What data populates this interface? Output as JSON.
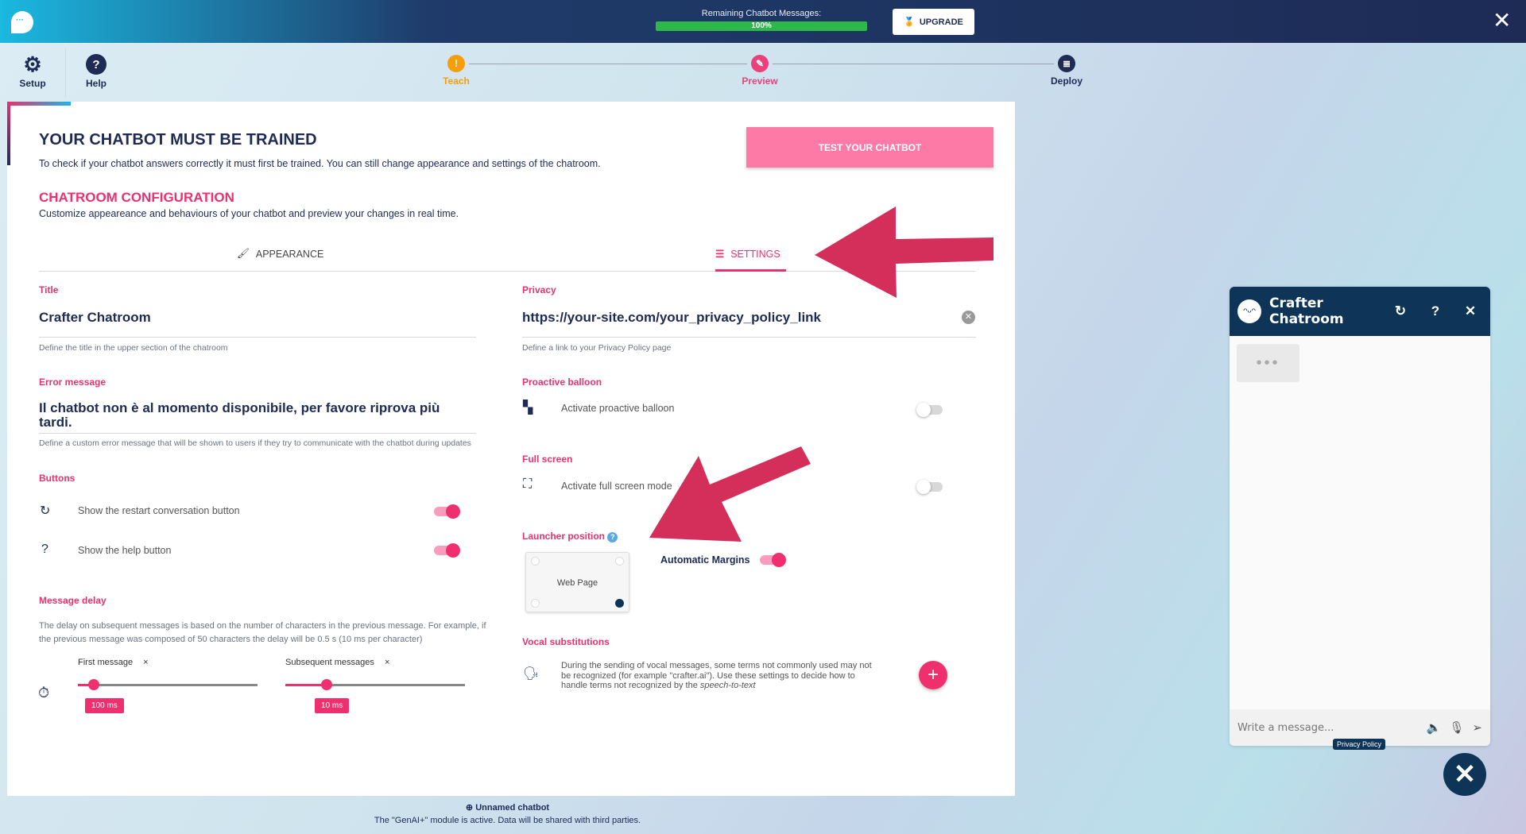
{
  "topbar": {
    "remaining_label": "Remaining Chatbot Messages:",
    "remaining_progress": "100%",
    "upgrade_label": "UPGRADE",
    "close_icon": "close-icon"
  },
  "nav": {
    "setup": "Setup",
    "help": "Help"
  },
  "steps": [
    {
      "label": "Teach",
      "color": "#f59e0b",
      "icon": "warning-icon"
    },
    {
      "label": "Preview",
      "color": "#ec407a",
      "icon": "pencil-icon"
    },
    {
      "label": "Deploy",
      "color": "#1d2b55",
      "icon": "server-icon"
    }
  ],
  "main": {
    "title": "YOUR CHATBOT MUST BE TRAINED",
    "description": "To check if your chatbot answers correctly it must first be trained. You can still change appearance and settings of the chatroom.",
    "test_button": "TEST YOUR CHATBOT",
    "config_title": "CHATROOM CONFIGURATION",
    "config_desc": "Customize appeareance and behaviours of your chatbot and preview your changes in real time.",
    "tabs": [
      {
        "label": "APPEARANCE",
        "active": false
      },
      {
        "label": "SETTINGS",
        "active": true
      }
    ],
    "title_field": {
      "label": "Title",
      "value": "Crafter Chatroom",
      "help": "Define the title in the upper section of the chatroom"
    },
    "error_field": {
      "label": "Error message",
      "value": "Il chatbot non è al momento disponibile, per favore riprova più tardi.",
      "help": "Define a custom error message that will be shown to users if they try to communicate with the chatbot during updates"
    },
    "buttons": {
      "label": "Buttons",
      "restart": {
        "label": "Show the restart conversation button",
        "on": true
      },
      "help": {
        "label": "Show the help button",
        "on": true
      }
    },
    "delay": {
      "label": "Message delay",
      "desc": "The delay on subsequent messages is based on the number of characters in the previous message. For example, if the previous message was composed of 50 characters the delay will be 0.5 s (10 ms per character)",
      "first": {
        "label": "First message",
        "value": "100 ms",
        "fraction": 0.09
      },
      "subsequent": {
        "label": "Subsequent messages",
        "value": "10 ms",
        "fraction": 0.23
      },
      "clear": "×"
    },
    "privacy": {
      "label": "Privacy",
      "value": "https://your-site.com/your_privacy_policy_link",
      "help": "Define a link to your Privacy Policy page"
    },
    "proactive": {
      "label": "Proactive balloon",
      "row": "Activate proactive balloon",
      "on": false
    },
    "fullscreen": {
      "label": "Full screen",
      "row": "Activate full screen mode",
      "on": false
    },
    "launcher": {
      "label": "Launcher position",
      "web_page": "Web Page",
      "auto_margins": "Automatic Margins",
      "auto_on": true,
      "selected": "bottom-right"
    },
    "vocal": {
      "label": "Vocal substitutions",
      "desc_pre": "During the sending of vocal messages, some terms not commonly used may not be recognized (for example \"crafter.ai\"). Use these settings to decide how to handle terms not recognized by the ",
      "desc_em": "speech-to-text",
      "add": "+"
    }
  },
  "footer": {
    "name": "Unnamed chatbot",
    "note": "The \"GenAI+\" module is active. Data will be shared with third parties."
  },
  "chat": {
    "title": "Crafter Chatroom",
    "placeholder": "Write a message...",
    "privacy": "Privacy Policy",
    "typing": "•••"
  },
  "colors": {
    "accent": "#f0306e",
    "navy": "#1d2b55",
    "chat_header": "#0e3558",
    "progress": "#2fb84a",
    "arrow": "#d42e5b"
  }
}
